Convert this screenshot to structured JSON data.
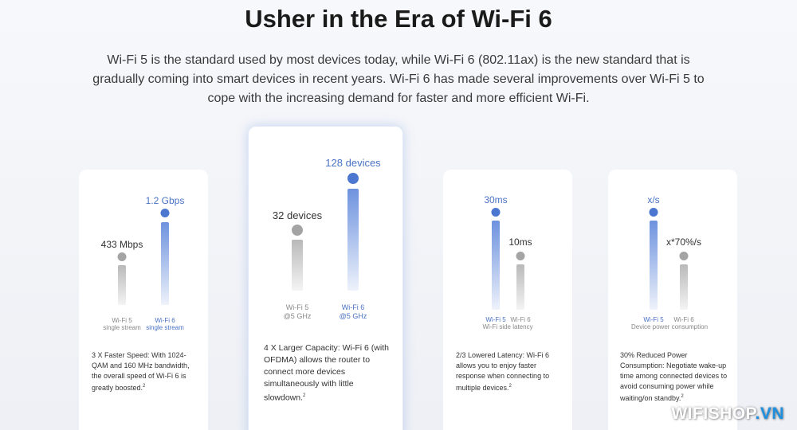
{
  "title": "Usher in the Era of Wi-Fi 6",
  "intro": "Wi-Fi 5 is the standard used by most devices today, while Wi-Fi 6 (802.11ax) is the new standard that is gradually coming into smart devices in recent years. Wi-Fi 6 has made several improvements over Wi-Fi 5 to cope with the increasing demand for faster and more efficient Wi-Fi.",
  "cards": [
    {
      "wifi5": {
        "value": "433 Mbps",
        "label": "Wi-Fi 5",
        "sublabel": "single stream"
      },
      "wifi6": {
        "value": "1.2 Gbps",
        "label": "Wi-Fi 6",
        "sublabel": "single stream"
      },
      "caption": "",
      "description": "3 X Faster Speed: With 1024-QAM and 160 MHz bandwidth, the overall speed of Wi-Fi 6 is greatly boosted."
    },
    {
      "wifi5": {
        "value": "32 devices",
        "label": "Wi-Fi 5",
        "sublabel": "@5 GHz"
      },
      "wifi6": {
        "value": "128 devices",
        "label": "Wi-Fi 6",
        "sublabel": "@5 GHz"
      },
      "caption": "",
      "description": "4 X Larger Capacity: Wi-Fi 6 (with OFDMA) allows the router to connect more devices simultaneously with little slowdown."
    },
    {
      "wifi5": {
        "value": "30ms",
        "label": "Wi-Fi 5",
        "sublabel": ""
      },
      "wifi6": {
        "value": "10ms",
        "label": "Wi-Fi 6",
        "sublabel": ""
      },
      "caption": "Wi-Fi side latency",
      "description": "2/3 Lowered Latency: Wi-Fi 6 allows you to enjoy faster response when connecting to multiple devices."
    },
    {
      "wifi5": {
        "value": "x/s",
        "label": "Wi-Fi 5",
        "sublabel": ""
      },
      "wifi6": {
        "value": "x*70%/s",
        "label": "Wi-Fi 6",
        "sublabel": ""
      },
      "caption": "Device power consumption",
      "description": "30% Reduced Power Consumption: Negotiate wake-up time among connected devices to avoid consuming power while waiting/on standby."
    }
  ],
  "footnote_mark": "2",
  "watermark": {
    "part1": "WIFISHOP",
    "part2": ".VN"
  },
  "colors": {
    "accent": "#4c77d0",
    "grey": "#a4a4a4",
    "watermark_accent": "#1f8fe0"
  }
}
